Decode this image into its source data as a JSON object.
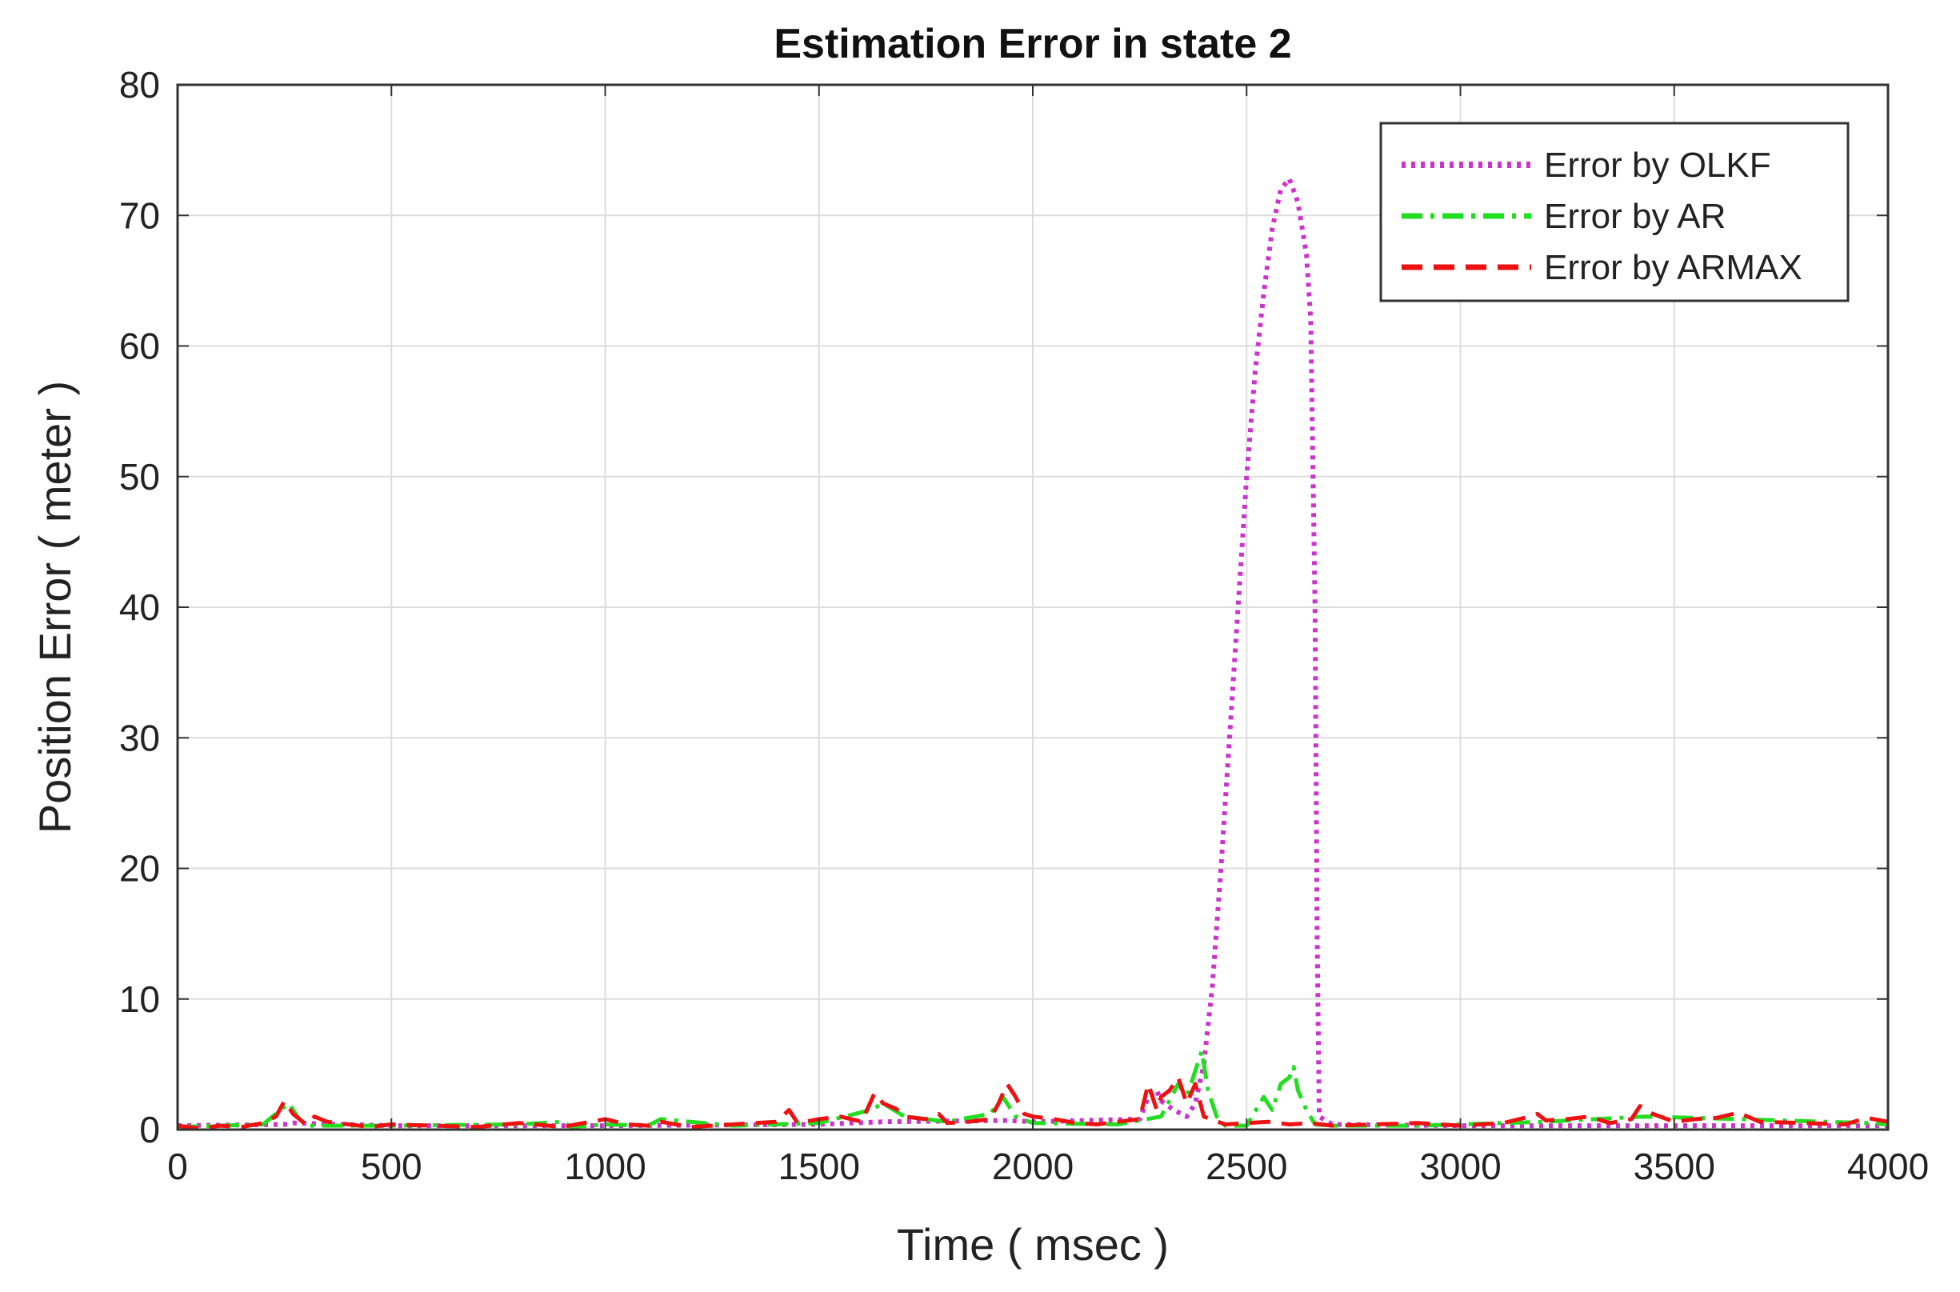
{
  "chart_data": {
    "type": "line",
    "title": "Estimation Error in state 2",
    "xlabel": "Time ( msec )",
    "ylabel": "Position Error ( meter )",
    "xlim": [
      0,
      4000
    ],
    "ylim": [
      0,
      80
    ],
    "xticks": [
      0,
      500,
      1000,
      1500,
      2000,
      2500,
      3000,
      3500,
      4000
    ],
    "yticks": [
      0,
      10,
      20,
      30,
      40,
      50,
      60,
      70,
      80
    ],
    "grid": true,
    "legend_position": "top-right",
    "series": [
      {
        "name": "Error by OLKF",
        "color": "#cc33cc",
        "style": "dotted",
        "x": [
          0,
          250,
          270,
          500,
          1000,
          1500,
          1650,
          1940,
          2000,
          2250,
          2270,
          2290,
          2300,
          2330,
          2360,
          2380,
          2400,
          2420,
          2440,
          2460,
          2480,
          2500,
          2520,
          2540,
          2560,
          2580,
          2600,
          2620,
          2640,
          2650,
          2660,
          2665,
          2670,
          2700,
          3000,
          3500,
          4000
        ],
        "y": [
          0.3,
          0.4,
          0.5,
          0.3,
          0.3,
          0.4,
          0.6,
          0.7,
          0.6,
          0.8,
          2.5,
          3.0,
          2.2,
          1.5,
          1.0,
          2.0,
          5.0,
          11.0,
          20.0,
          30.0,
          40.0,
          50.0,
          58.0,
          64.0,
          69.0,
          72.0,
          72.8,
          71.0,
          67.0,
          62.0,
          40.0,
          15.0,
          1.0,
          0.4,
          0.3,
          0.3,
          0.3
        ]
      },
      {
        "name": "Error by AR",
        "color": "#22dd22",
        "style": "dash-dot",
        "x": [
          0,
          100,
          200,
          240,
          260,
          280,
          300,
          500,
          800,
          900,
          920,
          1000,
          1100,
          1130,
          1300,
          1500,
          1620,
          1650,
          1700,
          1800,
          1900,
          1930,
          1960,
          2000,
          2200,
          2300,
          2340,
          2360,
          2380,
          2395,
          2410,
          2430,
          2450,
          2500,
          2540,
          2560,
          2580,
          2600,
          2610,
          2620,
          2640,
          2660,
          2700,
          2900,
          3200,
          3430,
          3650,
          3950,
          4000
        ],
        "y": [
          0.2,
          0.3,
          0.4,
          1.5,
          2.0,
          1.0,
          0.3,
          0.3,
          0.4,
          0.6,
          0.2,
          0.4,
          0.3,
          0.8,
          0.3,
          0.5,
          1.5,
          2.0,
          1.0,
          0.6,
          1.2,
          2.5,
          1.0,
          0.5,
          0.4,
          1.0,
          3.5,
          2.5,
          4.5,
          6.0,
          3.0,
          1.0,
          0.3,
          0.3,
          2.5,
          1.5,
          3.5,
          4.0,
          4.8,
          3.0,
          1.5,
          0.4,
          0.3,
          0.3,
          0.6,
          1.0,
          0.8,
          0.5,
          0.4
        ]
      },
      {
        "name": "Error by ARMAX",
        "color": "#ee1111",
        "style": "dashed",
        "x": [
          0,
          50,
          100,
          150,
          200,
          230,
          250,
          270,
          300,
          320,
          350,
          400,
          450,
          500,
          600,
          700,
          800,
          900,
          1000,
          1050,
          1100,
          1130,
          1200,
          1300,
          1400,
          1430,
          1450,
          1500,
          1550,
          1600,
          1630,
          1650,
          1680,
          1700,
          1750,
          1780,
          1800,
          1850,
          1900,
          1920,
          1940,
          1960,
          1980,
          2000,
          2050,
          2100,
          2150,
          2200,
          2250,
          2270,
          2290,
          2300,
          2320,
          2340,
          2360,
          2380,
          2400,
          2450,
          2500,
          2550,
          2600,
          2650,
          2700,
          2800,
          2900,
          3000,
          3100,
          3150,
          3180,
          3200,
          3250,
          3300,
          3350,
          3400,
          3420,
          3450,
          3500,
          3550,
          3600,
          3650,
          3700,
          3800,
          3900,
          3950,
          4000
        ],
        "y": [
          0.3,
          0.1,
          0.3,
          0.2,
          0.5,
          1.0,
          2.2,
          1.2,
          0.4,
          1.0,
          0.6,
          0.4,
          0.2,
          0.4,
          0.3,
          0.2,
          0.5,
          0.2,
          0.8,
          0.4,
          0.3,
          0.6,
          0.2,
          0.4,
          0.6,
          1.5,
          0.5,
          0.8,
          1.0,
          0.6,
          2.8,
          2.0,
          1.6,
          1.0,
          0.8,
          1.2,
          0.5,
          0.6,
          0.8,
          2.0,
          3.5,
          2.5,
          1.2,
          1.0,
          0.8,
          0.5,
          0.4,
          0.6,
          0.8,
          3.5,
          1.5,
          2.5,
          3.0,
          4.0,
          2.0,
          3.5,
          1.0,
          0.4,
          0.5,
          0.6,
          0.4,
          0.5,
          0.3,
          0.4,
          0.5,
          0.3,
          0.5,
          0.9,
          1.2,
          0.7,
          0.8,
          1.0,
          0.5,
          0.8,
          1.8,
          1.2,
          0.6,
          0.8,
          0.9,
          1.3,
          0.6,
          0.5,
          0.4,
          0.9,
          0.6
        ]
      }
    ]
  }
}
